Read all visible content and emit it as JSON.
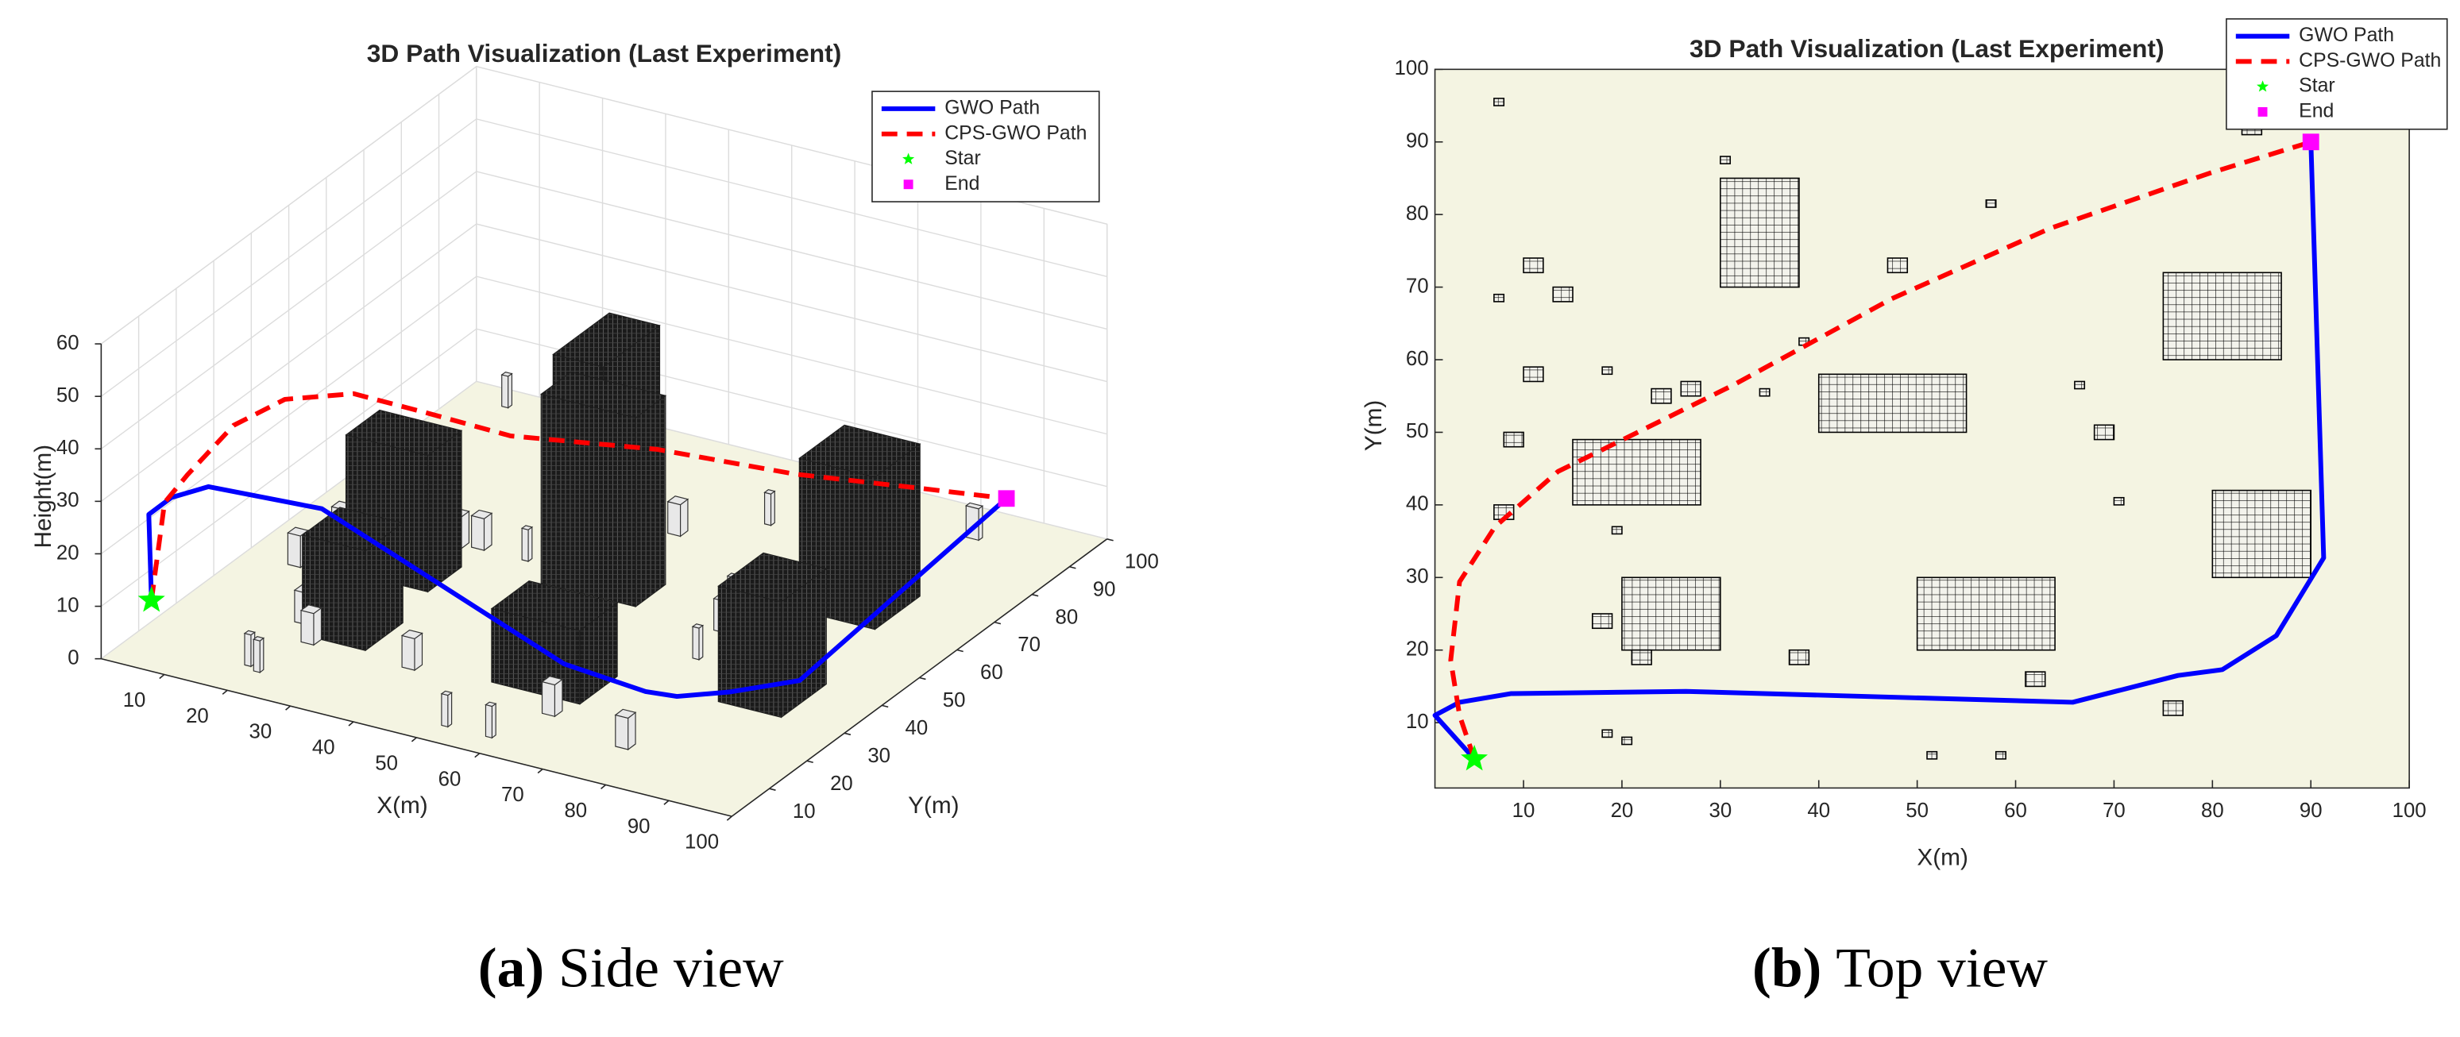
{
  "chart_data": [
    {
      "type": "line3d",
      "title": "3D Path Visualization (Last Experiment)",
      "xlabel": "X(m)",
      "ylabel": "Y(m)",
      "zlabel": "Height(m)",
      "caption_label": "(a)",
      "caption_text": "Side view",
      "xlim": [
        0,
        100
      ],
      "ylim": [
        0,
        100
      ],
      "zlim": [
        0,
        60
      ],
      "xticks": [
        10,
        20,
        30,
        40,
        50,
        60,
        70,
        80,
        90,
        100
      ],
      "yticks": [
        10,
        20,
        30,
        40,
        50,
        60,
        70,
        80,
        90,
        100
      ],
      "zticks": [
        0,
        10,
        20,
        30,
        40,
        50,
        60
      ],
      "grid": true,
      "legend": "upper right",
      "floor_color": "#f4f4e2",
      "obstacle_color": "#1e1e1e",
      "series": [
        {
          "name": "GWO Path",
          "color": "#0000ff",
          "line": "solid",
          "marker": "none",
          "x": [
            5,
            1,
            3.5,
            8.7,
            26.5,
            65.8,
            76.5,
            81,
            86.5,
            91.3,
            90
          ],
          "y": [
            5,
            11,
            12.8,
            14,
            14.3,
            12.8,
            16.5,
            17.3,
            22,
            32.7,
            90
          ],
          "z": [
            10,
            22,
            25,
            28,
            29,
            12,
            8,
            8,
            8,
            6,
            10
          ]
        },
        {
          "name": "CPS-GWO Path",
          "color": "#ff0000",
          "line": "dashed",
          "marker": "none",
          "x": [
            5,
            3.5,
            2.6,
            3.5,
            7.1,
            13.5,
            21.6,
            31.3,
            47.4,
            63.5,
            79.7,
            90
          ],
          "y": [
            5,
            11,
            18.6,
            29.4,
            37,
            44.6,
            50,
            56.5,
            68.4,
            78.1,
            85.7,
            90
          ],
          "z": [
            10,
            25,
            26,
            30,
            32,
            31,
            27,
            22,
            18,
            13,
            11,
            10
          ]
        },
        {
          "name": "Star",
          "color": "#00ff00",
          "line": "none",
          "marker": "star",
          "x": [
            5
          ],
          "y": [
            5
          ],
          "z": [
            10
          ]
        },
        {
          "name": "End",
          "color": "#ff00ff",
          "line": "none",
          "marker": "square",
          "x": [
            90
          ],
          "y": [
            90
          ],
          "z": [
            10
          ]
        }
      ],
      "obstacles": [
        [
          7,
          95,
          8,
          96,
          6
        ],
        [
          10,
          72,
          12,
          74,
          6
        ],
        [
          7,
          68,
          8,
          69,
          6
        ],
        [
          30,
          87,
          31,
          88,
          6
        ],
        [
          13,
          68,
          15,
          70,
          6
        ],
        [
          10,
          57,
          12,
          59,
          6
        ],
        [
          30,
          70,
          38,
          85,
          30
        ],
        [
          18,
          58,
          19,
          59,
          6
        ],
        [
          8,
          48,
          10,
          50,
          6
        ],
        [
          23,
          54,
          25,
          56,
          6
        ],
        [
          7,
          38,
          9,
          40,
          6
        ],
        [
          26,
          55,
          28,
          57,
          6
        ],
        [
          47,
          72,
          49,
          74,
          6
        ],
        [
          57,
          81,
          58,
          82,
          6
        ],
        [
          38,
          62,
          39,
          63,
          6
        ],
        [
          15,
          40,
          28,
          49,
          26
        ],
        [
          34,
          55,
          35,
          56,
          6
        ],
        [
          19,
          36,
          20,
          37,
          6
        ],
        [
          83,
          91,
          85,
          92,
          6
        ],
        [
          40,
          50,
          55,
          58,
          36
        ],
        [
          17,
          23,
          19,
          25,
          6
        ],
        [
          20,
          20,
          30,
          30,
          19
        ],
        [
          21,
          18,
          23,
          20,
          6
        ],
        [
          66,
          56,
          67,
          57,
          6
        ],
        [
          18,
          8,
          19,
          9,
          6
        ],
        [
          20,
          7,
          21,
          8,
          6
        ],
        [
          75,
          60,
          87,
          72,
          29
        ],
        [
          68,
          49,
          70,
          51,
          6
        ],
        [
          37,
          18,
          39,
          20,
          6
        ],
        [
          70,
          40,
          71,
          41,
          6
        ],
        [
          50,
          20,
          64,
          30,
          14
        ],
        [
          61,
          15,
          63,
          17,
          6
        ],
        [
          51,
          5,
          52,
          6,
          6
        ],
        [
          80,
          30,
          90,
          42,
          22
        ],
        [
          58,
          5,
          59,
          6,
          6
        ],
        [
          75,
          11,
          77,
          13,
          6
        ]
      ]
    },
    {
      "type": "line",
      "title": "3D Path Visualization (Last Experiment)",
      "xlabel": "X(m)",
      "ylabel": "Y(m)",
      "caption_label": "(b)",
      "caption_text": "Top view",
      "xlim": [
        1,
        100
      ],
      "ylim": [
        1,
        100
      ],
      "xticks": [
        10,
        20,
        30,
        40,
        50,
        60,
        70,
        80,
        90,
        100
      ],
      "yticks": [
        10,
        20,
        30,
        40,
        50,
        60,
        70,
        80,
        90,
        100
      ],
      "legend": "upper right",
      "background": "#f4f4e2",
      "series": [
        {
          "name": "GWO Path",
          "color": "#0000ff",
          "line": "solid",
          "marker": "none",
          "x": [
            5,
            1,
            3.5,
            8.7,
            26.5,
            65.8,
            76.5,
            81,
            86.5,
            91.3,
            90
          ],
          "y": [
            5,
            11,
            12.8,
            14,
            14.3,
            12.8,
            16.5,
            17.3,
            22,
            32.7,
            90
          ]
        },
        {
          "name": "CPS-GWO Path",
          "color": "#ff0000",
          "line": "dashed",
          "marker": "none",
          "x": [
            5,
            3.5,
            2.6,
            3.5,
            7.1,
            13.5,
            21.6,
            31.3,
            47.4,
            63.5,
            79.7,
            90
          ],
          "y": [
            5,
            11,
            18.6,
            29.4,
            37,
            44.6,
            50,
            56.5,
            68.4,
            78.1,
            85.7,
            90
          ]
        },
        {
          "name": "Star",
          "color": "#00ff00",
          "line": "none",
          "marker": "star",
          "x": [
            5
          ],
          "y": [
            5
          ]
        },
        {
          "name": "End",
          "color": "#ff00ff",
          "line": "none",
          "marker": "square",
          "x": [
            90
          ],
          "y": [
            90
          ]
        }
      ],
      "obstacles": [
        [
          7,
          95,
          8,
          96
        ],
        [
          10,
          72,
          12,
          74
        ],
        [
          7,
          68,
          8,
          69
        ],
        [
          30,
          87,
          31,
          88
        ],
        [
          13,
          68,
          15,
          70
        ],
        [
          10,
          57,
          12,
          59
        ],
        [
          30,
          70,
          38,
          85
        ],
        [
          18,
          58,
          19,
          59
        ],
        [
          8,
          48,
          10,
          50
        ],
        [
          23,
          54,
          25,
          56
        ],
        [
          7,
          38,
          9,
          40
        ],
        [
          26,
          55,
          28,
          57
        ],
        [
          47,
          72,
          49,
          74
        ],
        [
          57,
          81,
          58,
          82
        ],
        [
          38,
          62,
          39,
          63
        ],
        [
          15,
          40,
          28,
          49
        ],
        [
          34,
          55,
          35,
          56
        ],
        [
          19,
          36,
          20,
          37
        ],
        [
          83,
          91,
          85,
          92
        ],
        [
          40,
          50,
          55,
          58
        ],
        [
          17,
          23,
          19,
          25
        ],
        [
          20,
          20,
          30,
          30
        ],
        [
          21,
          18,
          23,
          20
        ],
        [
          66,
          56,
          67,
          57
        ],
        [
          18,
          8,
          19,
          9
        ],
        [
          20,
          7,
          21,
          8
        ],
        [
          75,
          60,
          87,
          72
        ],
        [
          68,
          49,
          70,
          51
        ],
        [
          37,
          18,
          39,
          20
        ],
        [
          70,
          40,
          71,
          41
        ],
        [
          50,
          20,
          64,
          30
        ],
        [
          61,
          15,
          63,
          17
        ],
        [
          51,
          5,
          52,
          6
        ],
        [
          80,
          30,
          90,
          42
        ],
        [
          58,
          5,
          59,
          6
        ],
        [
          75,
          11,
          77,
          13
        ]
      ]
    }
  ]
}
